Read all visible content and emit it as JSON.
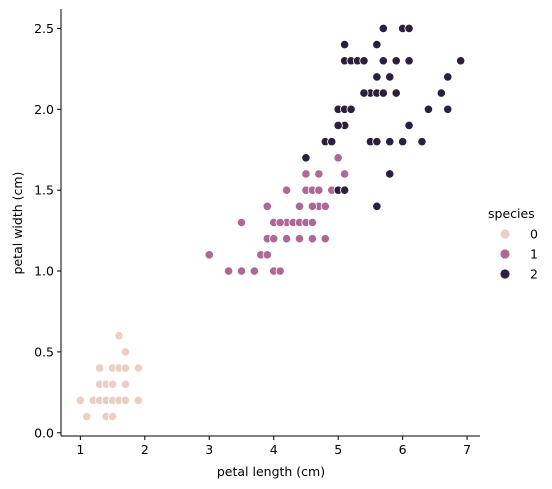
{
  "chart_data": {
    "type": "scatter",
    "xlabel": "petal length (cm)",
    "ylabel": "petal width (cm)",
    "xlim": [
      0.7,
      7.2
    ],
    "ylim": [
      -0.02,
      2.62
    ],
    "xticks": [
      1,
      2,
      3,
      4,
      5,
      6,
      7
    ],
    "xtick_labels": [
      "1",
      "2",
      "3",
      "4",
      "5",
      "6",
      "7"
    ],
    "yticks": [
      0.0,
      0.5,
      1.0,
      1.5,
      2.0,
      2.5
    ],
    "ytick_labels": [
      "0.0",
      "0.5",
      "1.0",
      "1.5",
      "2.0",
      "2.5"
    ],
    "grid": false,
    "legend": {
      "title": "species",
      "placement": "right"
    },
    "series": [
      {
        "name": "0",
        "color": "#ebcfc5",
        "points": [
          [
            1.0,
            0.2
          ],
          [
            1.1,
            0.1
          ],
          [
            1.2,
            0.2
          ],
          [
            1.3,
            0.2
          ],
          [
            1.4,
            0.2
          ],
          [
            1.5,
            0.2
          ],
          [
            1.6,
            0.2
          ],
          [
            1.7,
            0.2
          ],
          [
            1.9,
            0.2
          ],
          [
            1.4,
            0.1
          ],
          [
            1.5,
            0.1
          ],
          [
            1.3,
            0.3
          ],
          [
            1.4,
            0.3
          ],
          [
            1.5,
            0.3
          ],
          [
            1.7,
            0.3
          ],
          [
            1.3,
            0.4
          ],
          [
            1.5,
            0.4
          ],
          [
            1.6,
            0.4
          ],
          [
            1.7,
            0.4
          ],
          [
            1.9,
            0.4
          ],
          [
            1.7,
            0.5
          ],
          [
            1.6,
            0.6
          ]
        ]
      },
      {
        "name": "1",
        "color": "#ad6993",
        "points": [
          [
            3.0,
            1.1
          ],
          [
            3.3,
            1.0
          ],
          [
            3.5,
            1.0
          ],
          [
            3.7,
            1.0
          ],
          [
            4.0,
            1.0
          ],
          [
            4.1,
            1.0
          ],
          [
            3.8,
            1.1
          ],
          [
            3.9,
            1.1
          ],
          [
            3.5,
            1.3
          ],
          [
            3.9,
            1.2
          ],
          [
            4.0,
            1.2
          ],
          [
            4.2,
            1.2
          ],
          [
            4.4,
            1.2
          ],
          [
            4.0,
            1.3
          ],
          [
            4.1,
            1.3
          ],
          [
            4.2,
            1.3
          ],
          [
            4.3,
            1.3
          ],
          [
            4.4,
            1.3
          ],
          [
            4.5,
            1.3
          ],
          [
            4.6,
            1.3
          ],
          [
            4.7,
            1.4
          ],
          [
            3.9,
            1.4
          ],
          [
            4.4,
            1.4
          ],
          [
            4.6,
            1.4
          ],
          [
            4.8,
            1.4
          ],
          [
            4.5,
            1.5
          ],
          [
            4.6,
            1.5
          ],
          [
            4.7,
            1.5
          ],
          [
            4.9,
            1.5
          ],
          [
            4.2,
            1.5
          ],
          [
            4.5,
            1.6
          ],
          [
            4.7,
            1.6
          ],
          [
            5.1,
            1.6
          ],
          [
            5.0,
            1.7
          ],
          [
            4.8,
            1.8
          ],
          [
            4.8,
            1.2
          ],
          [
            4.6,
            1.2
          ],
          [
            4.1,
            1.3
          ]
        ]
      },
      {
        "name": "2",
        "color": "#2d1e3e",
        "points": [
          [
            5.0,
            1.5
          ],
          [
            5.1,
            1.5
          ],
          [
            5.6,
            1.4
          ],
          [
            5.8,
            1.6
          ],
          [
            4.5,
            1.7
          ],
          [
            4.8,
            1.8
          ],
          [
            4.9,
            1.8
          ],
          [
            5.5,
            1.8
          ],
          [
            5.6,
            1.8
          ],
          [
            5.8,
            1.8
          ],
          [
            6.0,
            1.8
          ],
          [
            6.3,
            1.8
          ],
          [
            5.1,
            1.9
          ],
          [
            5.0,
            1.9
          ],
          [
            6.1,
            1.9
          ],
          [
            5.0,
            2.0
          ],
          [
            5.1,
            2.0
          ],
          [
            5.2,
            2.0
          ],
          [
            6.4,
            2.0
          ],
          [
            6.7,
            2.0
          ],
          [
            5.5,
            2.1
          ],
          [
            5.6,
            2.1
          ],
          [
            5.7,
            2.1
          ],
          [
            5.9,
            2.1
          ],
          [
            6.6,
            2.1
          ],
          [
            5.4,
            2.1
          ],
          [
            5.6,
            2.2
          ],
          [
            5.8,
            2.2
          ],
          [
            6.7,
            2.2
          ],
          [
            5.1,
            2.3
          ],
          [
            5.2,
            2.3
          ],
          [
            5.3,
            2.3
          ],
          [
            5.4,
            2.3
          ],
          [
            5.7,
            2.3
          ],
          [
            5.9,
            2.3
          ],
          [
            6.1,
            2.3
          ],
          [
            6.9,
            2.3
          ],
          [
            5.1,
            2.4
          ],
          [
            5.6,
            2.4
          ],
          [
            6.0,
            2.5
          ],
          [
            6.1,
            2.5
          ],
          [
            5.7,
            2.5
          ]
        ]
      }
    ]
  }
}
